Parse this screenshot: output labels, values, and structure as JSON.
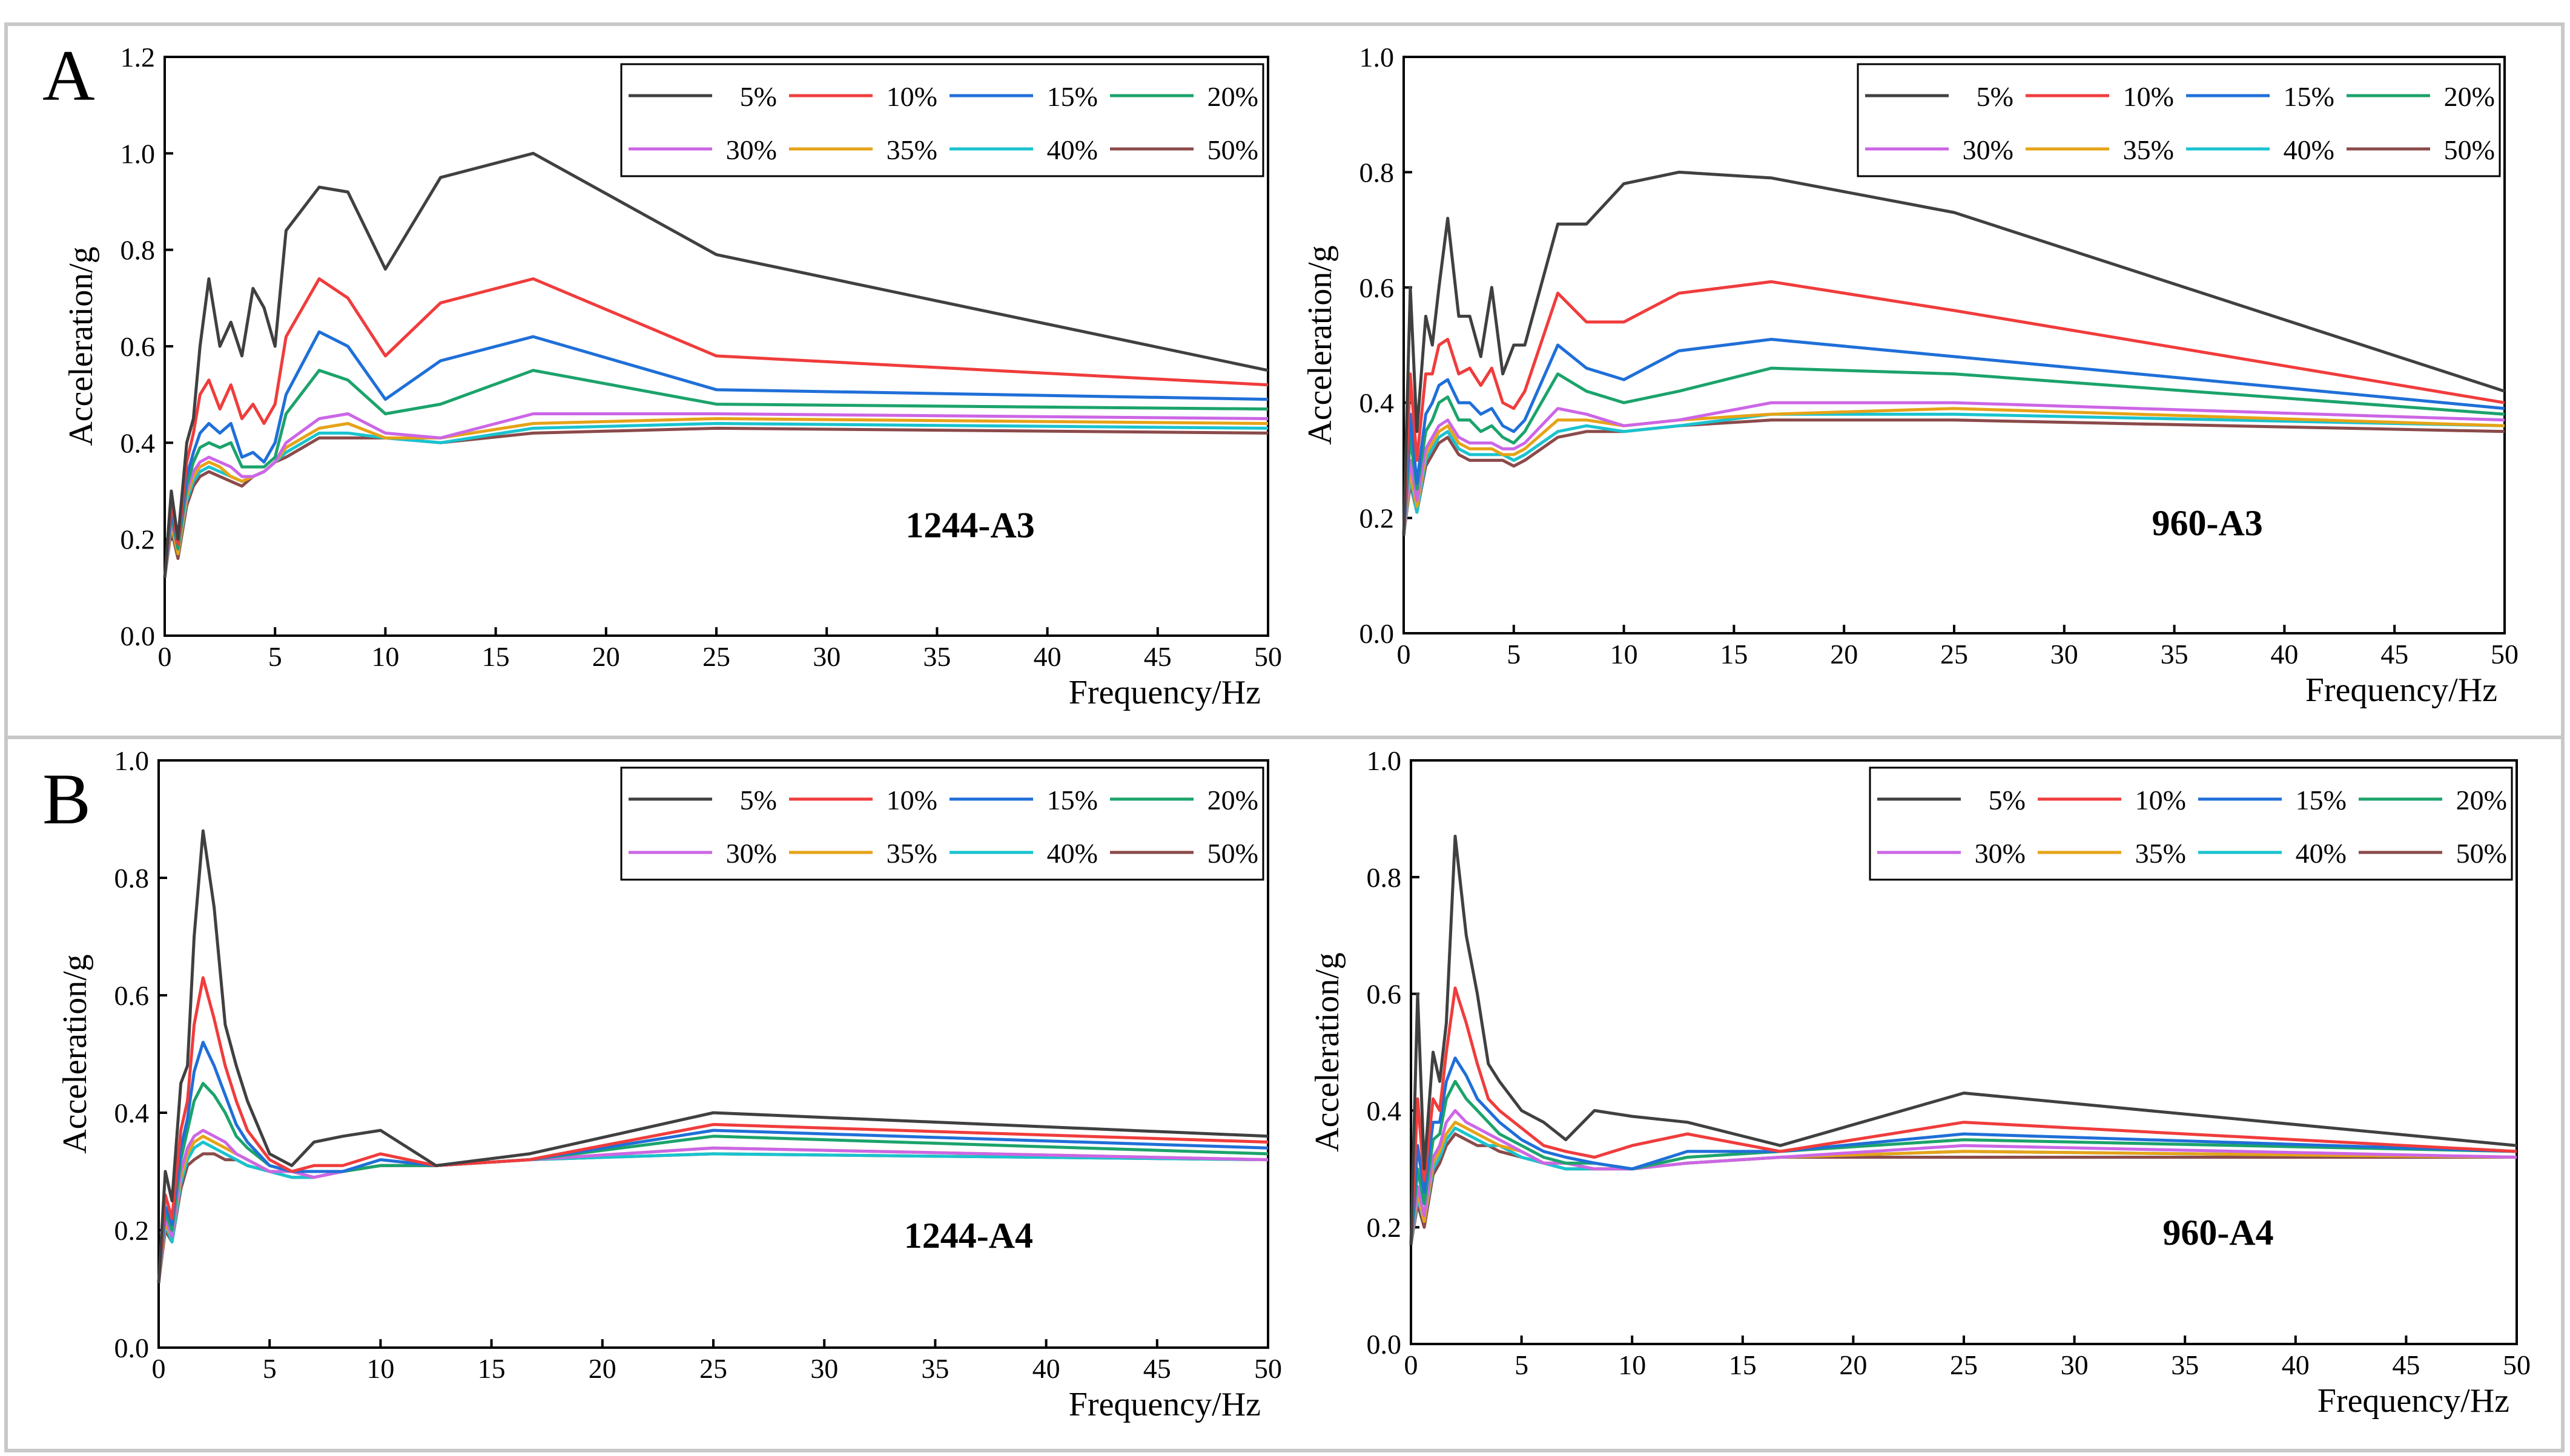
{
  "figure": {
    "panel_labels": [
      "A",
      "B"
    ],
    "legend_labels": [
      "5%",
      "10%",
      "15%",
      "20%",
      "30%",
      "35%",
      "40%",
      "50%"
    ],
    "series_colors": [
      "#404040",
      "#f03c3c",
      "#1f6fd8",
      "#1ba36b",
      "#cc66e6",
      "#e6a317",
      "#19c3cf",
      "#8b4a4a"
    ]
  },
  "chart_data": [
    {
      "type": "line",
      "annotation": "1244-A3",
      "xlabel": "Frequency/Hz",
      "ylabel": "Acceleration/g",
      "xlim": [
        0,
        50
      ],
      "ylim": [
        0,
        1.2
      ],
      "xticks": [
        0,
        5,
        10,
        15,
        20,
        25,
        30,
        35,
        40,
        45,
        50
      ],
      "yticks": [
        0.0,
        0.2,
        0.4,
        0.6,
        0.8,
        1.0,
        1.2
      ],
      "ytick_labels": [
        "0.0",
        "0.2",
        "0.4",
        "0.6",
        "0.8",
        "1.0",
        "1.2"
      ],
      "x": [
        0,
        0.3,
        0.6,
        1,
        1.3,
        1.6,
        2,
        2.5,
        3,
        3.5,
        4,
        4.5,
        5,
        5.5,
        7,
        8.3,
        10,
        12.5,
        16.7,
        25,
        50
      ],
      "series": [
        {
          "name": "5%",
          "values": [
            0.12,
            0.3,
            0.2,
            0.4,
            0.45,
            0.6,
            0.74,
            0.6,
            0.65,
            0.58,
            0.72,
            0.68,
            0.6,
            0.84,
            0.93,
            0.92,
            0.76,
            0.95,
            1.0,
            0.79,
            0.55
          ]
        },
        {
          "name": "10%",
          "values": [
            0.12,
            0.28,
            0.19,
            0.36,
            0.42,
            0.5,
            0.53,
            0.47,
            0.52,
            0.45,
            0.48,
            0.44,
            0.48,
            0.62,
            0.74,
            0.7,
            0.58,
            0.69,
            0.74,
            0.58,
            0.52
          ]
        },
        {
          "name": "15%",
          "values": [
            0.12,
            0.26,
            0.19,
            0.33,
            0.38,
            0.42,
            0.44,
            0.42,
            0.44,
            0.37,
            0.38,
            0.36,
            0.4,
            0.5,
            0.63,
            0.6,
            0.49,
            0.57,
            0.62,
            0.51,
            0.49
          ]
        },
        {
          "name": "20%",
          "values": [
            0.12,
            0.25,
            0.18,
            0.31,
            0.36,
            0.39,
            0.4,
            0.39,
            0.4,
            0.35,
            0.35,
            0.35,
            0.37,
            0.46,
            0.55,
            0.53,
            0.46,
            0.48,
            0.55,
            0.48,
            0.47
          ]
        },
        {
          "name": "30%",
          "values": [
            0.12,
            0.24,
            0.18,
            0.3,
            0.34,
            0.36,
            0.37,
            0.36,
            0.35,
            0.33,
            0.33,
            0.34,
            0.36,
            0.4,
            0.45,
            0.46,
            0.42,
            0.41,
            0.46,
            0.46,
            0.45
          ]
        },
        {
          "name": "35%",
          "values": [
            0.12,
            0.23,
            0.17,
            0.29,
            0.33,
            0.35,
            0.36,
            0.35,
            0.33,
            0.32,
            0.33,
            0.34,
            0.36,
            0.39,
            0.43,
            0.44,
            0.41,
            0.41,
            0.44,
            0.45,
            0.44
          ]
        },
        {
          "name": "40%",
          "values": [
            0.12,
            0.23,
            0.17,
            0.28,
            0.32,
            0.34,
            0.35,
            0.34,
            0.33,
            0.32,
            0.33,
            0.34,
            0.36,
            0.38,
            0.42,
            0.42,
            0.41,
            0.4,
            0.43,
            0.44,
            0.43
          ]
        },
        {
          "name": "50%",
          "values": [
            0.12,
            0.22,
            0.16,
            0.27,
            0.31,
            0.33,
            0.34,
            0.33,
            0.32,
            0.31,
            0.33,
            0.34,
            0.36,
            0.37,
            0.41,
            0.41,
            0.41,
            0.4,
            0.42,
            0.43,
            0.42
          ]
        }
      ]
    },
    {
      "type": "line",
      "annotation": "960-A3",
      "xlabel": "Frequency/Hz",
      "ylabel": "Acceleration/g",
      "xlim": [
        0,
        50
      ],
      "ylim": [
        0,
        1.0
      ],
      "xticks": [
        0,
        5,
        10,
        15,
        20,
        25,
        30,
        35,
        40,
        45,
        50
      ],
      "yticks": [
        0.0,
        0.2,
        0.4,
        0.6,
        0.8,
        1.0
      ],
      "ytick_labels": [
        "0.0",
        "0.2",
        "0.4",
        "0.6",
        "0.8",
        "1.0"
      ],
      "x": [
        0,
        0.3,
        0.6,
        1,
        1.3,
        1.6,
        2,
        2.5,
        3,
        3.5,
        4,
        4.5,
        5,
        5.5,
        7,
        8.3,
        10,
        12.5,
        16.7,
        25,
        50
      ],
      "series": [
        {
          "name": "5%",
          "values": [
            0.17,
            0.6,
            0.35,
            0.55,
            0.5,
            0.6,
            0.72,
            0.55,
            0.55,
            0.48,
            0.6,
            0.45,
            0.5,
            0.5,
            0.71,
            0.71,
            0.78,
            0.8,
            0.79,
            0.73,
            0.42
          ]
        },
        {
          "name": "10%",
          "values": [
            0.17,
            0.45,
            0.3,
            0.45,
            0.45,
            0.5,
            0.51,
            0.45,
            0.46,
            0.43,
            0.46,
            0.4,
            0.39,
            0.42,
            0.59,
            0.54,
            0.54,
            0.59,
            0.61,
            0.56,
            0.4
          ]
        },
        {
          "name": "15%",
          "values": [
            0.17,
            0.38,
            0.26,
            0.38,
            0.4,
            0.43,
            0.44,
            0.4,
            0.4,
            0.38,
            0.39,
            0.36,
            0.35,
            0.37,
            0.5,
            0.46,
            0.44,
            0.49,
            0.51,
            0.48,
            0.39
          ]
        },
        {
          "name": "20%",
          "values": [
            0.17,
            0.34,
            0.25,
            0.35,
            0.37,
            0.4,
            0.41,
            0.37,
            0.37,
            0.35,
            0.36,
            0.34,
            0.33,
            0.35,
            0.45,
            0.42,
            0.4,
            0.42,
            0.46,
            0.45,
            0.38
          ]
        },
        {
          "name": "30%",
          "values": [
            0.17,
            0.3,
            0.23,
            0.32,
            0.34,
            0.36,
            0.37,
            0.34,
            0.33,
            0.33,
            0.33,
            0.32,
            0.32,
            0.33,
            0.39,
            0.38,
            0.36,
            0.37,
            0.4,
            0.4,
            0.37
          ]
        },
        {
          "name": "35%",
          "values": [
            0.17,
            0.28,
            0.22,
            0.31,
            0.33,
            0.35,
            0.36,
            0.33,
            0.32,
            0.32,
            0.32,
            0.31,
            0.31,
            0.32,
            0.37,
            0.37,
            0.36,
            0.37,
            0.38,
            0.39,
            0.36
          ]
        },
        {
          "name": "40%",
          "values": [
            0.17,
            0.27,
            0.21,
            0.3,
            0.32,
            0.34,
            0.35,
            0.32,
            0.31,
            0.31,
            0.31,
            0.31,
            0.3,
            0.31,
            0.35,
            0.36,
            0.35,
            0.36,
            0.38,
            0.38,
            0.36
          ]
        },
        {
          "name": "50%",
          "values": [
            0.17,
            0.26,
            0.21,
            0.29,
            0.31,
            0.33,
            0.34,
            0.31,
            0.3,
            0.3,
            0.3,
            0.3,
            0.29,
            0.3,
            0.34,
            0.35,
            0.35,
            0.36,
            0.37,
            0.37,
            0.35
          ]
        }
      ]
    },
    {
      "type": "line",
      "annotation": "1244-A4",
      "xlabel": "Frequency/Hz",
      "ylabel": "Acceleration/g",
      "xlim": [
        0,
        50
      ],
      "ylim": [
        0,
        1.0
      ],
      "xticks": [
        0,
        5,
        10,
        15,
        20,
        25,
        30,
        35,
        40,
        45,
        50
      ],
      "yticks": [
        0.0,
        0.2,
        0.4,
        0.6,
        0.8,
        1.0
      ],
      "ytick_labels": [
        "0.0",
        "0.2",
        "0.4",
        "0.6",
        "0.8",
        "1.0"
      ],
      "x": [
        0,
        0.3,
        0.6,
        1,
        1.3,
        1.6,
        2,
        2.5,
        3,
        3.5,
        4,
        5,
        6,
        7,
        8.3,
        10,
        12.5,
        16.7,
        25,
        50
      ],
      "series": [
        {
          "name": "5%",
          "values": [
            0.11,
            0.3,
            0.25,
            0.45,
            0.48,
            0.7,
            0.88,
            0.75,
            0.55,
            0.48,
            0.42,
            0.33,
            0.31,
            0.35,
            0.36,
            0.37,
            0.31,
            0.33,
            0.4,
            0.36
          ]
        },
        {
          "name": "10%",
          "values": [
            0.11,
            0.26,
            0.22,
            0.37,
            0.42,
            0.55,
            0.63,
            0.56,
            0.48,
            0.42,
            0.37,
            0.32,
            0.3,
            0.31,
            0.31,
            0.33,
            0.31,
            0.32,
            0.38,
            0.35
          ]
        },
        {
          "name": "15%",
          "values": [
            0.11,
            0.24,
            0.21,
            0.34,
            0.39,
            0.47,
            0.52,
            0.48,
            0.43,
            0.38,
            0.35,
            0.31,
            0.3,
            0.3,
            0.3,
            0.32,
            0.31,
            0.32,
            0.37,
            0.34
          ]
        },
        {
          "name": "20%",
          "values": [
            0.11,
            0.23,
            0.2,
            0.32,
            0.37,
            0.42,
            0.45,
            0.43,
            0.4,
            0.36,
            0.34,
            0.31,
            0.3,
            0.3,
            0.3,
            0.31,
            0.31,
            0.32,
            0.36,
            0.33
          ]
        },
        {
          "name": "30%",
          "values": [
            0.11,
            0.22,
            0.19,
            0.3,
            0.34,
            0.36,
            0.37,
            0.36,
            0.35,
            0.33,
            0.32,
            0.3,
            0.3,
            0.29,
            0.3,
            0.31,
            0.31,
            0.32,
            0.34,
            0.32
          ]
        },
        {
          "name": "35%",
          "values": [
            0.11,
            0.21,
            0.19,
            0.29,
            0.33,
            0.35,
            0.36,
            0.35,
            0.34,
            0.33,
            0.32,
            0.3,
            0.3,
            0.29,
            0.3,
            0.31,
            0.31,
            0.32,
            0.34,
            0.32
          ]
        },
        {
          "name": "40%",
          "values": [
            0.11,
            0.21,
            0.18,
            0.28,
            0.32,
            0.34,
            0.35,
            0.34,
            0.33,
            0.32,
            0.31,
            0.3,
            0.29,
            0.29,
            0.3,
            0.31,
            0.31,
            0.32,
            0.33,
            0.32
          ]
        },
        {
          "name": "50%",
          "values": [
            0.11,
            0.2,
            0.18,
            0.27,
            0.31,
            0.32,
            0.33,
            0.33,
            0.32,
            0.32,
            0.31,
            0.3,
            0.29,
            0.29,
            0.3,
            0.31,
            0.31,
            0.32,
            0.33,
            0.32
          ]
        }
      ]
    },
    {
      "type": "line",
      "annotation": "960-A4",
      "xlabel": "Frequency/Hz",
      "ylabel": "Acceleration/g",
      "xlim": [
        0,
        50
      ],
      "ylim": [
        0,
        1.0
      ],
      "xticks": [
        0,
        5,
        10,
        15,
        20,
        25,
        30,
        35,
        40,
        45,
        50
      ],
      "yticks": [
        0.0,
        0.2,
        0.4,
        0.6,
        0.8,
        1.0
      ],
      "ytick_labels": [
        "0.0",
        "0.2",
        "0.4",
        "0.6",
        "0.8",
        "1.0"
      ],
      "x": [
        0,
        0.3,
        0.6,
        1,
        1.3,
        1.6,
        2,
        2.5,
        3,
        3.5,
        4,
        5,
        6,
        7,
        8.3,
        10,
        12.5,
        16.7,
        25,
        50
      ],
      "series": [
        {
          "name": "5%",
          "values": [
            0.17,
            0.6,
            0.3,
            0.5,
            0.45,
            0.55,
            0.87,
            0.7,
            0.6,
            0.48,
            0.45,
            0.4,
            0.38,
            0.35,
            0.4,
            0.39,
            0.38,
            0.34,
            0.43,
            0.34
          ]
        },
        {
          "name": "10%",
          "values": [
            0.17,
            0.42,
            0.28,
            0.42,
            0.4,
            0.5,
            0.61,
            0.55,
            0.48,
            0.42,
            0.4,
            0.37,
            0.34,
            0.33,
            0.32,
            0.34,
            0.36,
            0.33,
            0.38,
            0.33
          ]
        },
        {
          "name": "15%",
          "values": [
            0.17,
            0.34,
            0.26,
            0.38,
            0.38,
            0.45,
            0.49,
            0.46,
            0.42,
            0.4,
            0.38,
            0.35,
            0.33,
            0.32,
            0.31,
            0.3,
            0.33,
            0.33,
            0.36,
            0.33
          ]
        },
        {
          "name": "20%",
          "values": [
            0.17,
            0.3,
            0.24,
            0.35,
            0.36,
            0.42,
            0.45,
            0.42,
            0.4,
            0.38,
            0.36,
            0.34,
            0.32,
            0.31,
            0.31,
            0.3,
            0.32,
            0.33,
            0.35,
            0.33
          ]
        },
        {
          "name": "30%",
          "values": [
            0.17,
            0.27,
            0.22,
            0.32,
            0.34,
            0.38,
            0.4,
            0.38,
            0.37,
            0.36,
            0.35,
            0.33,
            0.31,
            0.31,
            0.3,
            0.3,
            0.31,
            0.32,
            0.34,
            0.32
          ]
        },
        {
          "name": "35%",
          "values": [
            0.17,
            0.26,
            0.21,
            0.31,
            0.33,
            0.36,
            0.38,
            0.37,
            0.36,
            0.35,
            0.34,
            0.33,
            0.31,
            0.31,
            0.3,
            0.3,
            0.31,
            0.32,
            0.33,
            0.32
          ]
        },
        {
          "name": "40%",
          "values": [
            0.17,
            0.25,
            0.21,
            0.3,
            0.32,
            0.35,
            0.37,
            0.36,
            0.35,
            0.34,
            0.34,
            0.32,
            0.31,
            0.3,
            0.3,
            0.3,
            0.31,
            0.32,
            0.33,
            0.32
          ]
        },
        {
          "name": "50%",
          "values": [
            0.17,
            0.24,
            0.2,
            0.29,
            0.31,
            0.34,
            0.36,
            0.35,
            0.34,
            0.34,
            0.33,
            0.32,
            0.31,
            0.3,
            0.3,
            0.3,
            0.31,
            0.32,
            0.32,
            0.32
          ]
        }
      ]
    }
  ]
}
